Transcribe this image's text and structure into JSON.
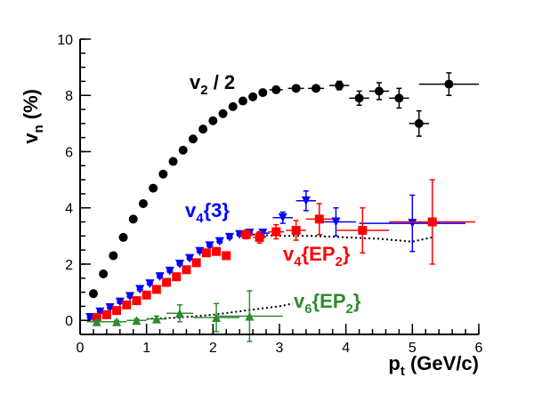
{
  "chart_data": {
    "type": "scatter",
    "xlabel": "p",
    "xlabel_sub": "t",
    "xlabel_unit": " (GeV/c)",
    "ylabel": "v",
    "ylabel_sub": "n",
    "ylabel_unit": " (%)",
    "xlim": [
      0,
      6
    ],
    "ylim": [
      -0.5,
      10
    ],
    "xticks": [
      0,
      1,
      2,
      3,
      4,
      5,
      6
    ],
    "yticks": [
      0,
      2,
      4,
      6,
      8,
      10
    ],
    "grid": false,
    "series": [
      {
        "name": "v2 / 2",
        "label_main": "v",
        "label_sub": "2",
        "label_tail": " / 2",
        "color": "#000000",
        "marker": "circle",
        "points": [
          {
            "x": 0.2,
            "y": 0.95,
            "xerr": 0,
            "yerr": 0.08
          },
          {
            "x": 0.35,
            "y": 1.65,
            "xerr": 0,
            "yerr": 0.08
          },
          {
            "x": 0.5,
            "y": 2.3,
            "xerr": 0,
            "yerr": 0.08
          },
          {
            "x": 0.65,
            "y": 2.95,
            "xerr": 0,
            "yerr": 0.08
          },
          {
            "x": 0.8,
            "y": 3.6,
            "xerr": 0,
            "yerr": 0.08
          },
          {
            "x": 0.95,
            "y": 4.15,
            "xerr": 0,
            "yerr": 0.08
          },
          {
            "x": 1.1,
            "y": 4.7,
            "xerr": 0,
            "yerr": 0.08
          },
          {
            "x": 1.25,
            "y": 5.2,
            "xerr": 0,
            "yerr": 0.08
          },
          {
            "x": 1.4,
            "y": 5.65,
            "xerr": 0,
            "yerr": 0.08
          },
          {
            "x": 1.55,
            "y": 6.05,
            "xerr": 0,
            "yerr": 0.08
          },
          {
            "x": 1.7,
            "y": 6.45,
            "xerr": 0,
            "yerr": 0.08
          },
          {
            "x": 1.85,
            "y": 6.8,
            "xerr": 0,
            "yerr": 0.08
          },
          {
            "x": 2.0,
            "y": 7.1,
            "xerr": 0,
            "yerr": 0.08
          },
          {
            "x": 2.15,
            "y": 7.35,
            "xerr": 0,
            "yerr": 0.08
          },
          {
            "x": 2.3,
            "y": 7.6,
            "xerr": 0,
            "yerr": 0.08
          },
          {
            "x": 2.45,
            "y": 7.8,
            "xerr": 0,
            "yerr": 0.08
          },
          {
            "x": 2.6,
            "y": 7.95,
            "xerr": 0,
            "yerr": 0.08
          },
          {
            "x": 2.75,
            "y": 8.1,
            "xerr": 0,
            "yerr": 0.08
          },
          {
            "x": 2.95,
            "y": 8.2,
            "xerr": 0.1,
            "yerr": 0.08
          },
          {
            "x": 3.25,
            "y": 8.25,
            "xerr": 0.12,
            "yerr": 0.08
          },
          {
            "x": 3.55,
            "y": 8.25,
            "xerr": 0.12,
            "yerr": 0.1
          },
          {
            "x": 3.9,
            "y": 8.35,
            "xerr": 0.15,
            "yerr": 0.15
          },
          {
            "x": 4.2,
            "y": 7.9,
            "xerr": 0.15,
            "yerr": 0.25
          },
          {
            "x": 4.5,
            "y": 8.15,
            "xerr": 0.15,
            "yerr": 0.3
          },
          {
            "x": 4.8,
            "y": 7.9,
            "xerr": 0.15,
            "yerr": 0.35
          },
          {
            "x": 5.1,
            "y": 7.0,
            "xerr": 0.15,
            "yerr": 0.45
          },
          {
            "x": 5.55,
            "y": 8.4,
            "xerr": 0.45,
            "yerr": 0.4
          }
        ]
      },
      {
        "name": "v4{3}",
        "label_main": "v",
        "label_sub": "4",
        "label_tail": "{3}",
        "color": "#0000ff",
        "marker": "triangle-down",
        "points": [
          {
            "x": 0.15,
            "y": 0.1,
            "xerr": 0.05,
            "yerr": 0.05
          },
          {
            "x": 0.3,
            "y": 0.3,
            "xerr": 0.05,
            "yerr": 0.05
          },
          {
            "x": 0.45,
            "y": 0.45,
            "xerr": 0.05,
            "yerr": 0.05
          },
          {
            "x": 0.6,
            "y": 0.65,
            "xerr": 0.05,
            "yerr": 0.05
          },
          {
            "x": 0.75,
            "y": 0.85,
            "xerr": 0.05,
            "yerr": 0.05
          },
          {
            "x": 0.9,
            "y": 1.1,
            "xerr": 0.05,
            "yerr": 0.05
          },
          {
            "x": 1.05,
            "y": 1.3,
            "xerr": 0.05,
            "yerr": 0.05
          },
          {
            "x": 1.2,
            "y": 1.55,
            "xerr": 0.05,
            "yerr": 0.05
          },
          {
            "x": 1.35,
            "y": 1.75,
            "xerr": 0.05,
            "yerr": 0.05
          },
          {
            "x": 1.5,
            "y": 2.0,
            "xerr": 0.05,
            "yerr": 0.05
          },
          {
            "x": 1.65,
            "y": 2.2,
            "xerr": 0.05,
            "yerr": 0.05
          },
          {
            "x": 1.8,
            "y": 2.45,
            "xerr": 0.05,
            "yerr": 0.05
          },
          {
            "x": 1.95,
            "y": 2.65,
            "xerr": 0.05,
            "yerr": 0.05
          },
          {
            "x": 2.1,
            "y": 2.8,
            "xerr": 0.05,
            "yerr": 0.05
          },
          {
            "x": 2.25,
            "y": 2.95,
            "xerr": 0.05,
            "yerr": 0.05
          },
          {
            "x": 2.4,
            "y": 3.05,
            "xerr": 0.05,
            "yerr": 0.05
          },
          {
            "x": 2.55,
            "y": 3.1,
            "xerr": 0.05,
            "yerr": 0.08
          },
          {
            "x": 2.75,
            "y": 3.1,
            "xerr": 0.1,
            "yerr": 0.1
          },
          {
            "x": 3.05,
            "y": 3.65,
            "xerr": 0.15,
            "yerr": 0.2
          },
          {
            "x": 3.4,
            "y": 4.25,
            "xerr": 0.15,
            "yerr": 0.35
          },
          {
            "x": 3.85,
            "y": 3.5,
            "xerr": 0.3,
            "yerr": 0.5
          },
          {
            "x": 5.0,
            "y": 3.45,
            "xerr": 0.8,
            "yerr": 1.0
          }
        ]
      },
      {
        "name": "v4{EP2}",
        "label_main": "v",
        "label_sub": "4",
        "label_tail": "{EP",
        "label_tail_sub": "2",
        "label_tail_end": "}",
        "color": "#ff0000",
        "marker": "square",
        "points": [
          {
            "x": 0.25,
            "y": 0.1,
            "xerr": 0.05,
            "yerr": 0.05
          },
          {
            "x": 0.4,
            "y": 0.2,
            "xerr": 0.05,
            "yerr": 0.05
          },
          {
            "x": 0.55,
            "y": 0.35,
            "xerr": 0.05,
            "yerr": 0.05
          },
          {
            "x": 0.7,
            "y": 0.55,
            "xerr": 0.05,
            "yerr": 0.05
          },
          {
            "x": 0.85,
            "y": 0.7,
            "xerr": 0.05,
            "yerr": 0.05
          },
          {
            "x": 1.0,
            "y": 0.9,
            "xerr": 0.05,
            "yerr": 0.05
          },
          {
            "x": 1.15,
            "y": 1.1,
            "xerr": 0.05,
            "yerr": 0.05
          },
          {
            "x": 1.3,
            "y": 1.35,
            "xerr": 0.05,
            "yerr": 0.05
          },
          {
            "x": 1.45,
            "y": 1.55,
            "xerr": 0.05,
            "yerr": 0.05
          },
          {
            "x": 1.6,
            "y": 1.8,
            "xerr": 0.05,
            "yerr": 0.05
          },
          {
            "x": 1.75,
            "y": 2.05,
            "xerr": 0.05,
            "yerr": 0.05
          },
          {
            "x": 1.9,
            "y": 2.4,
            "xerr": 0.05,
            "yerr": 0.08
          },
          {
            "x": 2.05,
            "y": 2.45,
            "xerr": 0.05,
            "yerr": 0.08
          },
          {
            "x": 2.2,
            "y": 2.3,
            "xerr": 0.05,
            "yerr": 0.08
          },
          {
            "x": 2.5,
            "y": 3.05,
            "xerr": 0.1,
            "yerr": 0.15
          },
          {
            "x": 2.7,
            "y": 2.95,
            "xerr": 0.1,
            "yerr": 0.2
          },
          {
            "x": 2.95,
            "y": 3.15,
            "xerr": 0.12,
            "yerr": 0.25
          },
          {
            "x": 3.25,
            "y": 3.2,
            "xerr": 0.15,
            "yerr": 0.35
          },
          {
            "x": 3.6,
            "y": 3.6,
            "xerr": 0.2,
            "yerr": 0.55
          },
          {
            "x": 4.25,
            "y": 3.2,
            "xerr": 0.4,
            "yerr": 0.8
          },
          {
            "x": 5.3,
            "y": 3.5,
            "xerr": 0.65,
            "yerr": 1.5
          }
        ]
      },
      {
        "name": "v6{EP2}",
        "label_main": "v",
        "label_sub": "6",
        "label_tail": "{EP",
        "label_tail_sub": "2",
        "label_tail_end": "}",
        "color": "#2e8b2e",
        "marker": "triangle-up",
        "points": [
          {
            "x": 0.25,
            "y": -0.05,
            "xerr": 0.15,
            "yerr": 0.05
          },
          {
            "x": 0.55,
            "y": -0.05,
            "xerr": 0.15,
            "yerr": 0.05
          },
          {
            "x": 0.85,
            "y": 0.0,
            "xerr": 0.15,
            "yerr": 0.05
          },
          {
            "x": 1.15,
            "y": 0.05,
            "xerr": 0.15,
            "yerr": 0.1
          },
          {
            "x": 1.5,
            "y": 0.25,
            "xerr": 0.2,
            "yerr": 0.3
          },
          {
            "x": 2.05,
            "y": 0.1,
            "xerr": 0.35,
            "yerr": 0.5
          },
          {
            "x": 2.55,
            "y": 0.15,
            "xerr": 0.5,
            "yerr": 0.9
          }
        ]
      }
    ],
    "curves": [
      {
        "description": "dotted line above v4 data",
        "color": "#000000",
        "style": "dotted",
        "points": [
          [
            2.4,
            3.1
          ],
          [
            2.6,
            3.05
          ],
          [
            3.0,
            3.0
          ],
          [
            3.5,
            3.0
          ],
          [
            4.0,
            2.95
          ],
          [
            4.5,
            2.9
          ],
          [
            5.0,
            2.8
          ],
          [
            5.3,
            2.95
          ]
        ]
      },
      {
        "description": "dotted line near v6 data",
        "color": "#000000",
        "style": "dotted",
        "points": [
          [
            1.0,
            0.05
          ],
          [
            1.5,
            0.1
          ],
          [
            2.0,
            0.2
          ],
          [
            2.5,
            0.35
          ],
          [
            3.0,
            0.5
          ],
          [
            3.2,
            0.6
          ]
        ]
      }
    ]
  }
}
